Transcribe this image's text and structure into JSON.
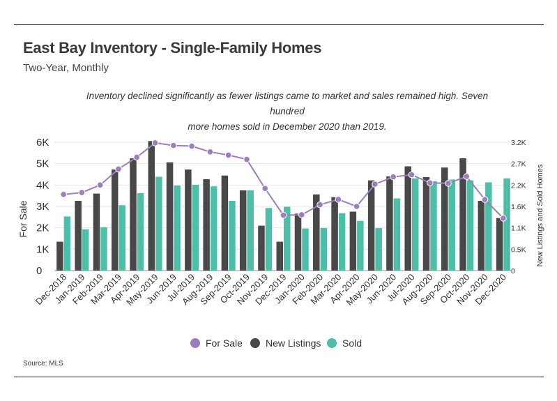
{
  "header": {
    "title": "East Bay Inventory - Single-Family Homes",
    "subtitle": "Two-Year, Monthly",
    "annotation_line1": "Inventory declined significantly as fewer listings came to market and sales remained high. Seven hundred",
    "annotation_line2": "more homes sold in December 2020 than 2019."
  },
  "footer": {
    "source": "Source:  MLS"
  },
  "colors": {
    "for_sale": "#9b7fbd",
    "new_listings": "#484848",
    "sold": "#4dbfa8",
    "grid": "#e6e6e6"
  },
  "chart_data": {
    "type": "bar",
    "title": "East Bay Inventory - Single-Family Homes",
    "categories": [
      "Dec-2018",
      "Jan-2019",
      "Feb-2019",
      "Mar-2019",
      "Apr-2019",
      "May-2019",
      "Jun-2019",
      "Jul-2019",
      "Aug-2019",
      "Sep-2019",
      "Oct-2019",
      "Nov-2019",
      "Dec-2019",
      "Jan-2020",
      "Feb-2020",
      "Mar-2020",
      "Apr-2020",
      "May-2020",
      "Jun-2020",
      "Jul-2020",
      "Aug-2020",
      "Sep-2020",
      "Oct-2020",
      "Nov-2020",
      "Dec-2020"
    ],
    "ylabel": "For Sale",
    "y2label": "New Listings and Sold Homes",
    "ylim": [
      0,
      6000
    ],
    "y2lim": [
      0,
      3200
    ],
    "yticks": [
      "0",
      "1K",
      "2K",
      "3K",
      "4K",
      "5K",
      "6K"
    ],
    "y2ticks": [
      "0",
      "0.5K",
      "1.1K",
      "1.6K",
      "2.2K",
      "2.7K",
      "3.2K"
    ],
    "legend_position": "bottom",
    "series": [
      {
        "name": "For Sale",
        "type": "line",
        "axis": "left",
        "values": [
          3560,
          3650,
          4000,
          4750,
          5300,
          5970,
          5850,
          5820,
          5550,
          5400,
          5200,
          3840,
          2590,
          2610,
          3080,
          3330,
          3000,
          4040,
          4380,
          4480,
          4100,
          4080,
          4400,
          3320,
          2450
        ]
      },
      {
        "name": "New Listings",
        "type": "bar",
        "axis": "right",
        "values": [
          720,
          1740,
          1920,
          2520,
          2800,
          3230,
          2700,
          2520,
          2280,
          2370,
          2000,
          1120,
          720,
          1420,
          1900,
          1830,
          1470,
          2250,
          2350,
          2600,
          2330,
          2570,
          2800,
          1740,
          1310
        ]
      },
      {
        "name": "Sold",
        "type": "bar",
        "axis": "right",
        "values": [
          1350,
          1030,
          1080,
          1630,
          1930,
          2340,
          2120,
          2140,
          2100,
          1740,
          2000,
          1560,
          1590,
          1050,
          1060,
          1430,
          1240,
          1060,
          1800,
          2300,
          2230,
          2270,
          2250,
          2200,
          2300
        ]
      }
    ]
  }
}
